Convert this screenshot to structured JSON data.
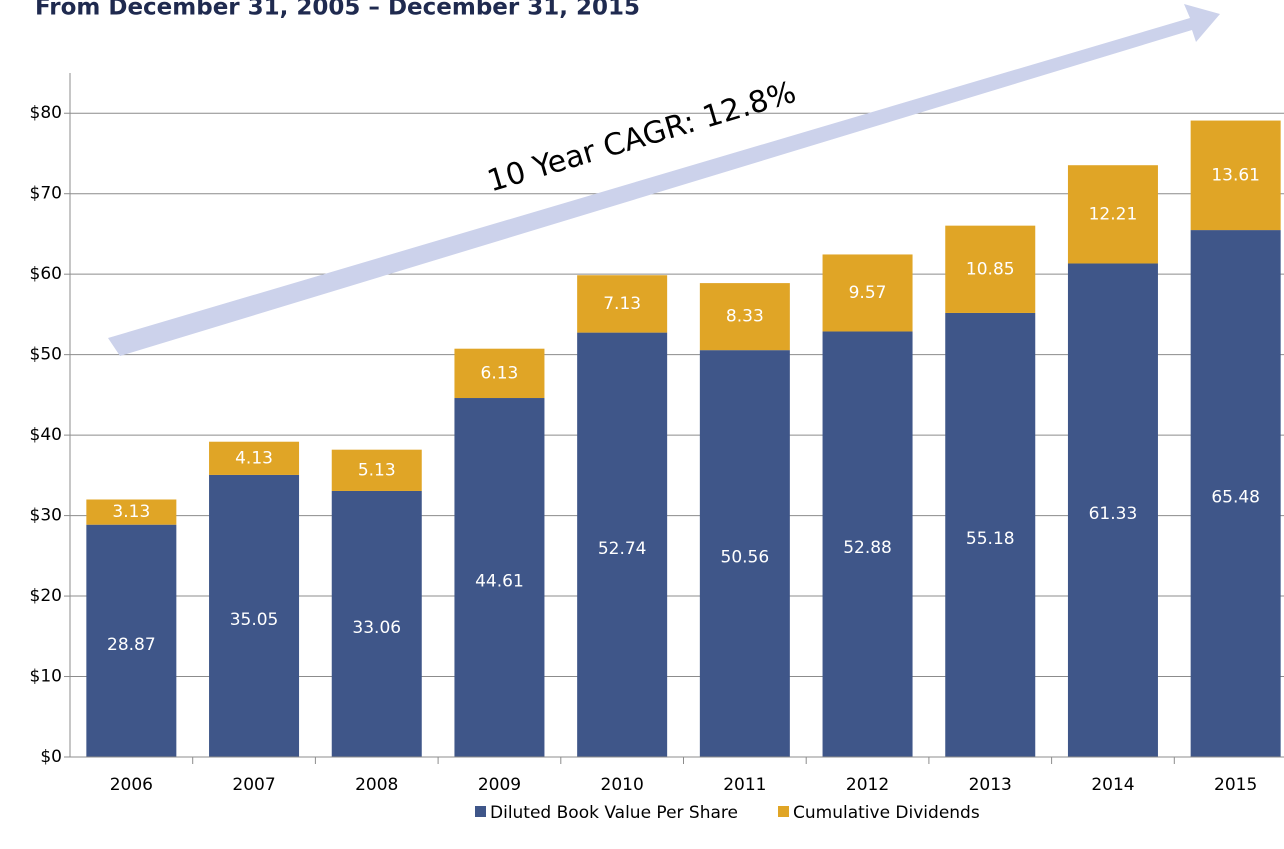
{
  "chart_data": {
    "type": "stacked_bar",
    "title": "From December 31, 2005 – December 31, 2015",
    "annotation": "10 Year CAGR: 12.8%",
    "categories": [
      "2006",
      "2007",
      "2008",
      "2009",
      "2010",
      "2011",
      "2012",
      "2013",
      "2014",
      "2015"
    ],
    "series": [
      {
        "name": "Diluted Book Value Per Share",
        "color": "#3f5689",
        "values": [
          28.87,
          35.05,
          33.06,
          44.61,
          52.74,
          50.56,
          52.88,
          55.18,
          61.33,
          65.48
        ]
      },
      {
        "name": "Cumulative Dividends",
        "color": "#e0a526",
        "values": [
          3.13,
          4.13,
          5.13,
          6.13,
          7.13,
          8.33,
          9.57,
          10.85,
          12.21,
          13.61
        ]
      }
    ],
    "ylim": [
      0,
      85
    ],
    "yticks": [
      {
        "value": 0,
        "label": "$0"
      },
      {
        "value": 10,
        "label": "$10"
      },
      {
        "value": 20,
        "label": "$20"
      },
      {
        "value": 30,
        "label": "$30"
      },
      {
        "value": 40,
        "label": "$40"
      },
      {
        "value": 50,
        "label": "$50"
      },
      {
        "value": 60,
        "label": "$60"
      },
      {
        "value": 70,
        "label": "$70"
      },
      {
        "value": 80,
        "label": "$80"
      }
    ],
    "grid": true,
    "legend": "bottom"
  }
}
